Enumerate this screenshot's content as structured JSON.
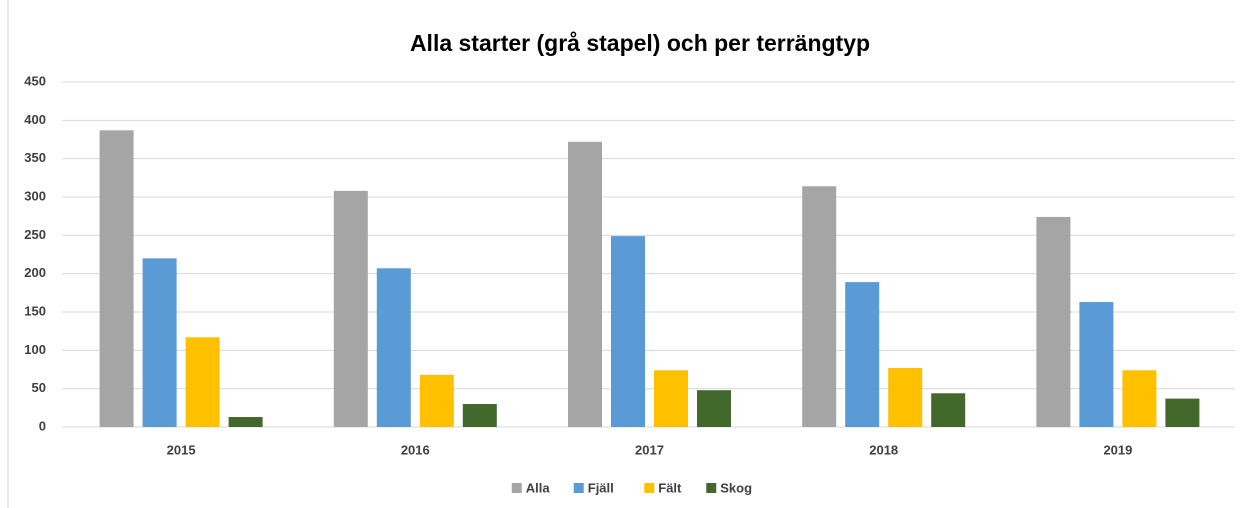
{
  "chart_data": {
    "type": "bar",
    "title": "Alla starter (grå stapel) och per terrängtyp",
    "categories": [
      "2015",
      "2016",
      "2017",
      "2018",
      "2019"
    ],
    "series": [
      {
        "name": "Alla",
        "color": "#a5a5a5",
        "values": [
          387,
          308,
          372,
          314,
          274
        ]
      },
      {
        "name": "Fjäll",
        "color": "#5b9bd5",
        "values": [
          220,
          207,
          249,
          189,
          163
        ]
      },
      {
        "name": "Fält",
        "color": "#ffc000",
        "values": [
          117,
          68,
          74,
          77,
          74
        ]
      },
      {
        "name": "Skog",
        "color": "#43682b",
        "values": [
          13,
          30,
          48,
          44,
          37
        ]
      }
    ],
    "ylim": [
      0,
      450
    ],
    "yticks": [
      0,
      50,
      100,
      150,
      200,
      250,
      300,
      350,
      400,
      450
    ],
    "grid": true,
    "legend": "bottom"
  }
}
